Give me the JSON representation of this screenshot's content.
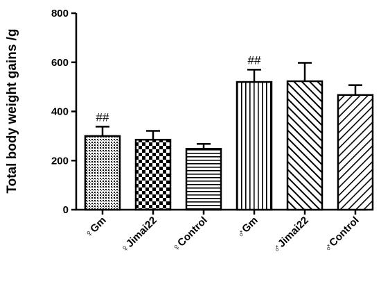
{
  "chart_data": {
    "type": "bar",
    "ylabel": "Total body weight gains /g",
    "xlabel": "",
    "ylim": [
      0,
      800
    ],
    "yticks": [
      0,
      200,
      400,
      600,
      800
    ],
    "categories": [
      "♀Gm",
      "♀Jimai22",
      "♀Control",
      "♂Gm",
      "♂Jimai22",
      "♂Control"
    ],
    "values": [
      300,
      285,
      248,
      520,
      523,
      467
    ],
    "errors": [
      38,
      36,
      20,
      50,
      75,
      40
    ],
    "annotations": [
      "##",
      "",
      "",
      "##",
      "",
      ""
    ],
    "patterns": [
      "dots",
      "checker",
      "hlines",
      "vlines",
      "diag-right",
      "diag-left"
    ],
    "colors": {
      "bar_fill": "#ffffff",
      "stroke": "#000000"
    },
    "grid": false
  }
}
